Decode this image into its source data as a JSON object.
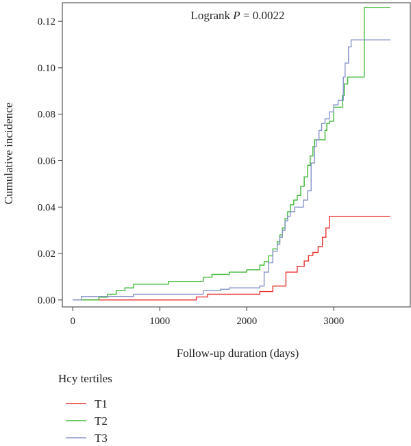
{
  "chart_data": {
    "type": "line",
    "step": true,
    "xlabel": "Follow-up duration (days)",
    "ylabel": "Cumulative incidence",
    "xlim": [
      -120,
      3880
    ],
    "ylim": [
      -0.003,
      0.128
    ],
    "xticks": [
      0,
      1000,
      2000,
      3000
    ],
    "yticks": [
      0.0,
      0.02,
      0.04,
      0.06,
      0.08,
      0.1,
      0.12
    ],
    "ytick_labels": [
      "0.00",
      "0.02",
      "0.04",
      "0.06",
      "0.08",
      "0.10",
      "0.12"
    ],
    "grid": false,
    "annotation": {
      "prefix": "Logrank ",
      "italic": "P",
      "suffix": " = 0.0022"
    },
    "legend": {
      "title": "Hcy tertiles",
      "placement": "below-left"
    },
    "series": [
      {
        "name": "T1",
        "color": "#e8312f",
        "x": [
          0,
          1420,
          1550,
          2150,
          2300,
          2450,
          2580,
          2660,
          2710,
          2760,
          2820,
          2870,
          2910,
          2950,
          3650
        ],
        "y": [
          0.0,
          0.0013,
          0.0025,
          0.0036,
          0.006,
          0.012,
          0.0145,
          0.0168,
          0.0192,
          0.0205,
          0.023,
          0.027,
          0.031,
          0.036,
          0.036
        ]
      },
      {
        "name": "T2",
        "color": "#3cb835",
        "x": [
          0,
          300,
          400,
          500,
          600,
          700,
          1100,
          1500,
          1600,
          1700,
          1800,
          2000,
          2150,
          2200,
          2250,
          2300,
          2350,
          2380,
          2410,
          2440,
          2470,
          2500,
          2540,
          2580,
          2620,
          2660,
          2700,
          2730,
          2760,
          2780,
          2900,
          2920,
          2950,
          3000,
          3100,
          3120,
          3160,
          3200,
          3350,
          3650
        ],
        "y": [
          0.0,
          0.0012,
          0.0025,
          0.004,
          0.0052,
          0.0068,
          0.008,
          0.0098,
          0.011,
          0.011,
          0.012,
          0.013,
          0.015,
          0.0165,
          0.019,
          0.022,
          0.025,
          0.028,
          0.031,
          0.035,
          0.038,
          0.041,
          0.043,
          0.045,
          0.049,
          0.053,
          0.058,
          0.062,
          0.066,
          0.069,
          0.073,
          0.076,
          0.077,
          0.083,
          0.088,
          0.093,
          0.096,
          0.096,
          0.126,
          0.126
        ]
      },
      {
        "name": "T3",
        "color": "#8592c8",
        "x": [
          0,
          100,
          300,
          700,
          1500,
          1600,
          1700,
          1800,
          2000,
          2150,
          2200,
          2250,
          2300,
          2350,
          2380,
          2410,
          2440,
          2470,
          2500,
          2550,
          2650,
          2700,
          2740,
          2780,
          2800,
          2830,
          2860,
          2900,
          2950,
          3000,
          3050,
          3110,
          3130,
          3170,
          3200,
          3650
        ],
        "y": [
          0.0,
          0.0015,
          0.0015,
          0.0025,
          0.004,
          0.004,
          0.0046,
          0.0052,
          0.0052,
          0.006,
          0.012,
          0.016,
          0.021,
          0.024,
          0.027,
          0.03,
          0.034,
          0.036,
          0.038,
          0.04,
          0.043,
          0.047,
          0.059,
          0.066,
          0.069,
          0.073,
          0.076,
          0.078,
          0.081,
          0.084,
          0.086,
          0.096,
          0.102,
          0.109,
          0.112,
          0.112
        ]
      }
    ]
  }
}
